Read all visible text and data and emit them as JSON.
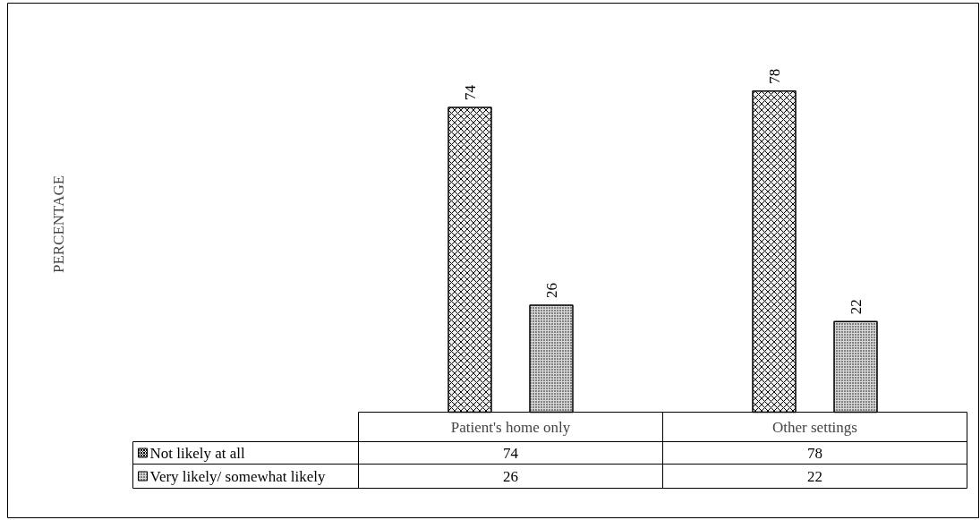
{
  "chart_data": {
    "type": "bar",
    "annotations": [
      "PERCENTAGE",
      "74",
      "78",
      "26",
      "22"
    ],
    "categories": [
      "Patient's home only",
      "Other settings"
    ],
    "series": [
      {
        "name": "Not likely at all",
        "color": "#eeeeee",
        "values": [
          74,
          78
        ]
      },
      {
        "name": "Very likely/ somewhat likely",
        "color": "#d9d9d9",
        "values": [
          26,
          22
        ]
      }
    ],
    "ylim": [
      0,
      100
    ],
    "data_labels": true,
    "legend": "bottom left"
  }
}
